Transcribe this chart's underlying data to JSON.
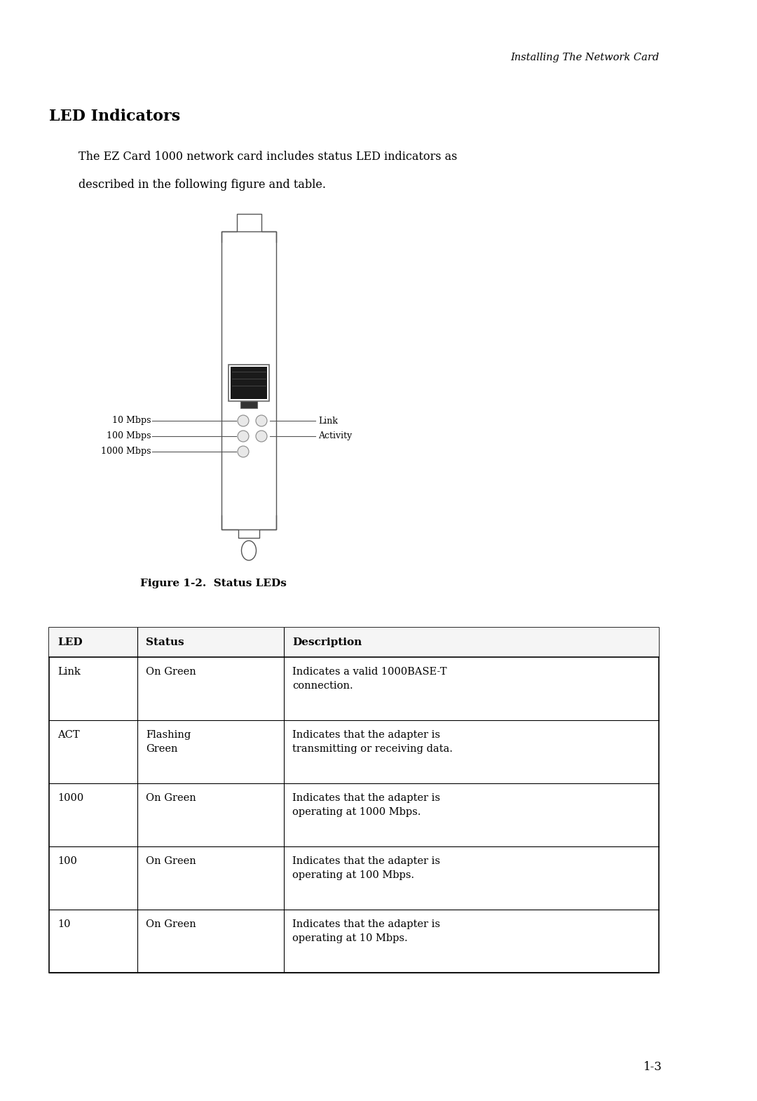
{
  "bg_color": "#ffffff",
  "header_text": "Installing The Network Card",
  "section_title": "LED Indicators",
  "body_line1": "The EZ Card 1000 network card includes status LED indicators as",
  "body_line2": "described in the following figure and table.",
  "figure_caption": "Figure 1-2.  Status LEDs",
  "page_number": "1-3",
  "table_headers": [
    "LED",
    "Status",
    "Description"
  ],
  "table_rows": [
    [
      "Link",
      "On Green",
      "Indicates a valid 1000BASE-T\nconnection."
    ],
    [
      "ACT",
      "Flashing\nGreen",
      "Indicates that the adapter is\ntransmitting or receiving data."
    ],
    [
      "1000",
      "On Green",
      "Indicates that the adapter is\noperating at 1000 Mbps."
    ],
    [
      "100",
      "On Green",
      "Indicates that the adapter is\noperating at 100 Mbps."
    ],
    [
      "10",
      "On Green",
      "Indicates that the adapter is\noperating at 10 Mbps."
    ]
  ]
}
